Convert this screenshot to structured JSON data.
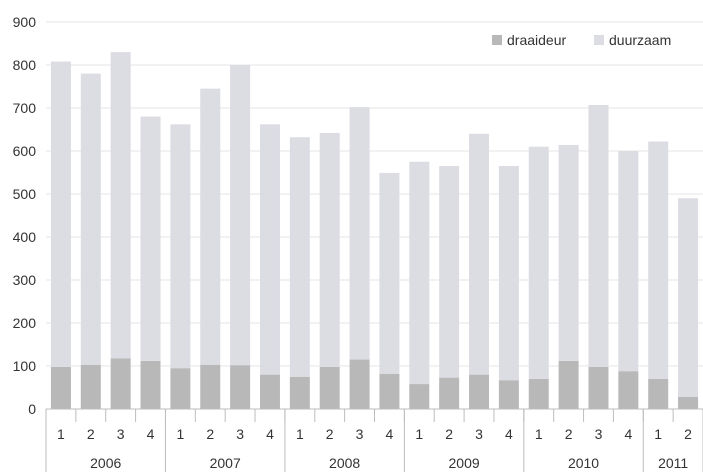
{
  "chart_data": {
    "type": "bar",
    "stacked": true,
    "categories": [
      "1",
      "2",
      "3",
      "4",
      "1",
      "2",
      "3",
      "4",
      "1",
      "2",
      "3",
      "4",
      "1",
      "2",
      "3",
      "4",
      "1",
      "2",
      "3",
      "4",
      "1",
      "2"
    ],
    "groups": [
      {
        "label": "2006",
        "count": 4
      },
      {
        "label": "2007",
        "count": 4
      },
      {
        "label": "2008",
        "count": 4
      },
      {
        "label": "2009",
        "count": 4
      },
      {
        "label": "2010",
        "count": 4
      },
      {
        "label": "2011",
        "count": 2
      }
    ],
    "series": [
      {
        "name": "draaideur",
        "color": "#b8b8b8",
        "values": [
          98,
          103,
          118,
          112,
          95,
          103,
          102,
          80,
          75,
          98,
          115,
          82,
          58,
          73,
          80,
          67,
          70,
          112,
          98,
          88,
          70,
          28
        ]
      },
      {
        "name": "duurzaam",
        "color": "#dcdce3",
        "values": [
          710,
          677,
          712,
          568,
          567,
          642,
          698,
          582,
          557,
          544,
          587,
          467,
          517,
          492,
          560,
          498,
          540,
          502,
          609,
          512,
          552,
          462
        ]
      }
    ],
    "ylim": [
      0,
      900
    ],
    "yticks": [
      "0",
      "100",
      "200",
      "300",
      "400",
      "500",
      "600",
      "700",
      "800",
      "900"
    ],
    "legend": "top-right",
    "grid": true
  }
}
